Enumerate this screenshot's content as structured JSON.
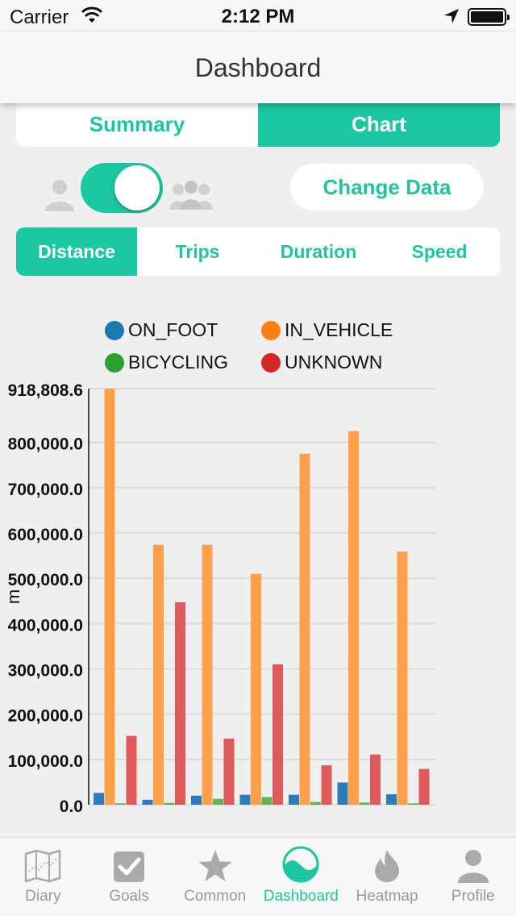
{
  "status_bar": {
    "carrier": "Carrier",
    "time": "2:12 PM"
  },
  "nav": {
    "title": "Dashboard"
  },
  "view_tabs": [
    {
      "label": "Summary",
      "active": false
    },
    {
      "label": "Chart",
      "active": true
    }
  ],
  "controls": {
    "toggle_on": true,
    "change_data_label": "Change Data"
  },
  "metric_tabs": [
    {
      "label": "Distance",
      "active": true
    },
    {
      "label": "Trips",
      "active": false
    },
    {
      "label": "Duration",
      "active": false
    },
    {
      "label": "Speed",
      "active": false
    }
  ],
  "chart_data": {
    "type": "bar",
    "ylabel": "m",
    "ylim": [
      0,
      918808.6
    ],
    "yticks": [
      "0.0",
      "100,000.0",
      "200,000.0",
      "300,000.0",
      "400,000.0",
      "500,000.0",
      "600,000.0",
      "700,000.0",
      "800,000.0",
      "918,808.6"
    ],
    "grid": true,
    "legend_position": "top",
    "colors": [
      "#1f77b4",
      "#ff7f0e",
      "#2ca02c",
      "#d62728"
    ],
    "series": [
      {
        "name": "ON_FOOT",
        "values": [
          26000,
          11000,
          20000,
          22000,
          22000,
          49000,
          23000
        ]
      },
      {
        "name": "IN_VEHICLE",
        "values": [
          918808.6,
          574000,
          574000,
          510000,
          775000,
          825000,
          559000
        ]
      },
      {
        "name": "BICYCLING",
        "values": [
          3000,
          4000,
          13000,
          17000,
          6000,
          5000,
          3000
        ]
      },
      {
        "name": "UNKNOWN",
        "values": [
          152000,
          447000,
          146000,
          310000,
          87000,
          111000,
          79000
        ]
      }
    ]
  },
  "tab_bar": [
    {
      "label": "Diary",
      "icon": "map-icon",
      "active": false
    },
    {
      "label": "Goals",
      "icon": "checkbox-icon",
      "active": false
    },
    {
      "label": "Common",
      "icon": "star-icon",
      "active": false
    },
    {
      "label": "Dashboard",
      "icon": "wave-icon",
      "active": true
    },
    {
      "label": "Heatmap",
      "icon": "flame-icon",
      "active": false
    },
    {
      "label": "Profile",
      "icon": "person-icon",
      "active": false
    }
  ]
}
